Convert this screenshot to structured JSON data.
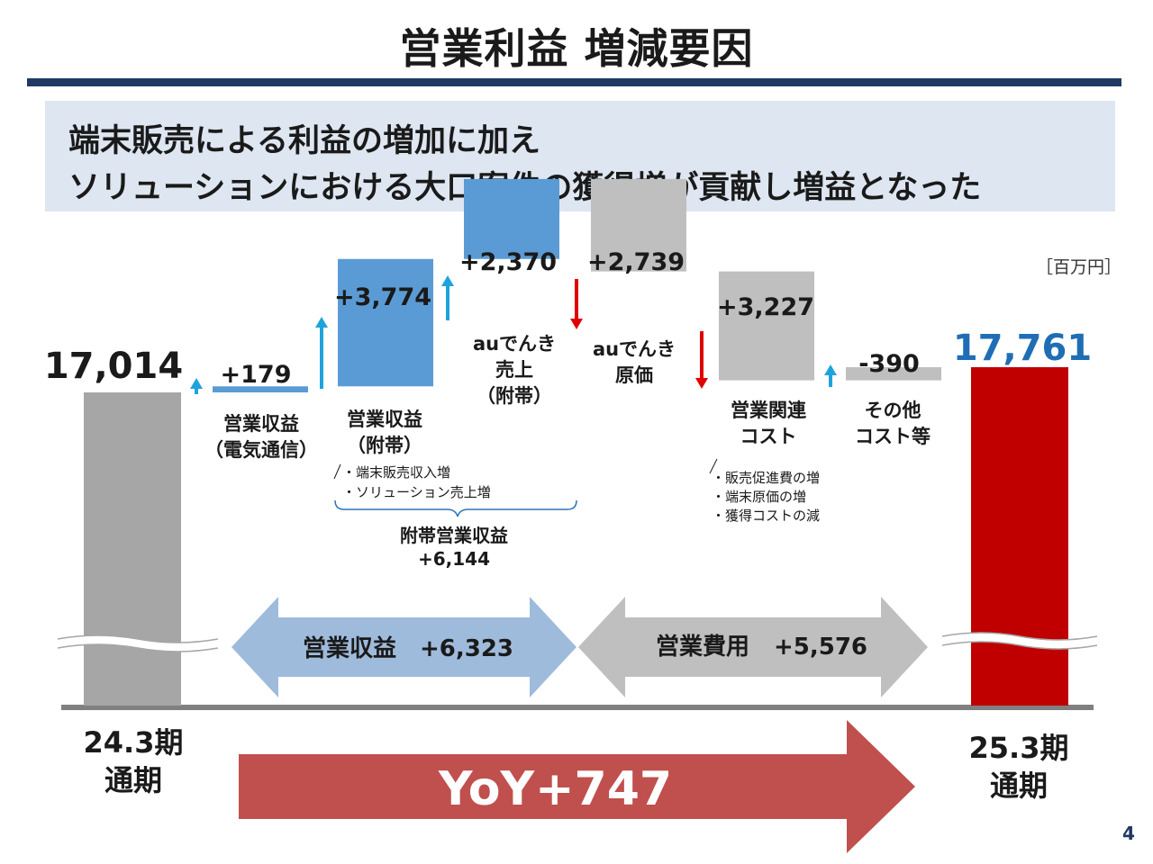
{
  "header": {
    "title": "営業利益 増減要因",
    "summary_line1": "端末販売による利益の増加に加え",
    "summary_line2": "ソリューションにおける大口案件の獲得増が貢献し増益となった",
    "unit": "［百万円］",
    "page_number": "4"
  },
  "colors": {
    "start_bar": "#a6a6a6",
    "end_bar": "#c00000",
    "revenue_bar": "#5b9bd5",
    "cost_bar": "#bfbfbf",
    "up_arrow": "#1fa3dc",
    "down_arrow": "#e00000",
    "revenue_band": "#9fbbdc",
    "cost_band": "#bfbfbf",
    "yoy_arrow": "#c0504d",
    "end_value": "#1f6eb5",
    "title_rule": "#1f3864"
  },
  "chart_data": {
    "type": "bar",
    "subtype": "waterfall",
    "unit": "百万円",
    "start": {
      "value": 17014,
      "value_label": "17,014",
      "period_line1": "24.3期",
      "period_line2": "通期"
    },
    "end": {
      "value": 17761,
      "value_label": "17,761",
      "period_line1": "25.3期",
      "period_line2": "通期"
    },
    "steps": [
      {
        "label_line1": "営業収益",
        "label_line2": "（電気通信）",
        "delta": 179,
        "delta_label": "+179",
        "kind": "revenue",
        "direction": "up"
      },
      {
        "label_line1": "営業収益",
        "label_line2": "（附帯）",
        "delta": 3774,
        "delta_label": "+3,774",
        "kind": "revenue",
        "direction": "up"
      },
      {
        "label_line1": "auでんき",
        "label_line2": "売上",
        "label_line3": "（附帯）",
        "delta": 2370,
        "delta_label": "+2,370",
        "kind": "revenue",
        "direction": "up"
      },
      {
        "label_line1": "auでんき",
        "label_line2": "原価",
        "delta": -2739,
        "delta_label": "+2,739",
        "kind": "cost",
        "direction": "down"
      },
      {
        "label_line1": "営業関連",
        "label_line2": "コスト",
        "delta": -3227,
        "delta_label": "+3,227",
        "kind": "cost",
        "direction": "down"
      },
      {
        "label_line1": "その他",
        "label_line2": "コスト等",
        "delta": 390,
        "delta_label": "-390",
        "kind": "cost",
        "direction": "up"
      }
    ],
    "notes": {
      "revenue_notes": [
        "・端末販売収入増",
        "・ソリューション売上増"
      ],
      "cost_notes": [
        "・販売促進費の増",
        "・端末原価の増",
        "・獲得コストの減"
      ],
      "subtotal_label": "附帯営業収益",
      "subtotal_value": "+6,144"
    },
    "bands": {
      "revenue_label": "営業収益",
      "revenue_value": "+6,323",
      "cost_label": "営業費用",
      "cost_value": "+5,576"
    },
    "yoy": {
      "label": "YoY",
      "value": "+747"
    }
  }
}
